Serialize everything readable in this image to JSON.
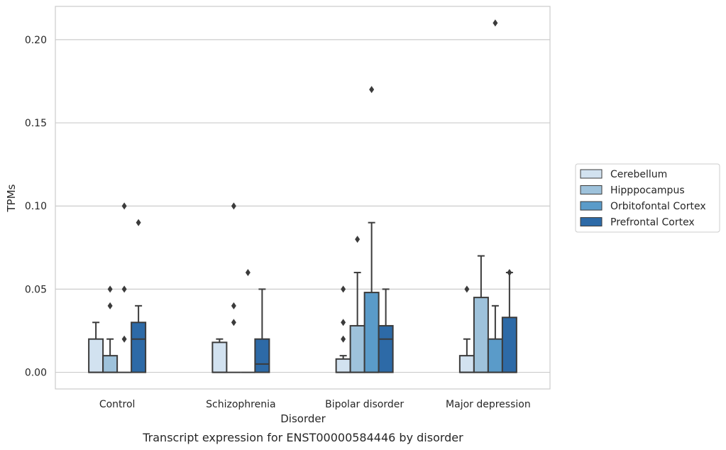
{
  "caption": "Transcript expression for ENST00000584446 by disorder",
  "chart_data": {
    "type": "box",
    "xlabel": "Disorder",
    "ylabel": "TPMs",
    "ylim": [
      -0.01,
      0.22
    ],
    "yticks": [
      0.0,
      0.05,
      0.1,
      0.15,
      0.2
    ],
    "ytick_labels": [
      "0.00",
      "0.05",
      "0.10",
      "0.15",
      "0.20"
    ],
    "categories": [
      "Control",
      "Schizophrenia",
      "Bipolar disorder",
      "Major depression"
    ],
    "grid": "horizontal",
    "legend_position": "right",
    "series": [
      {
        "name": "Cerebellum",
        "color": "#d2e2f0",
        "boxes": [
          {
            "q1": 0.0,
            "median": 0.0,
            "q3": 0.02,
            "whisker_low": 0.0,
            "whisker_high": 0.03,
            "outliers": []
          },
          {
            "q1": 0.0,
            "median": 0.0,
            "q3": 0.018,
            "whisker_low": 0.0,
            "whisker_high": 0.02,
            "outliers": []
          },
          {
            "q1": 0.0,
            "median": 0.0,
            "q3": 0.008,
            "whisker_low": 0.0,
            "whisker_high": 0.01,
            "outliers": [
              0.02,
              0.03,
              0.05
            ]
          },
          {
            "q1": 0.0,
            "median": 0.0,
            "q3": 0.01,
            "whisker_low": 0.0,
            "whisker_high": 0.02,
            "outliers": [
              0.05
            ]
          }
        ]
      },
      {
        "name": "Hipppocampus",
        "color": "#9ec2db",
        "boxes": [
          {
            "q1": 0.0,
            "median": 0.0,
            "q3": 0.01,
            "whisker_low": 0.0,
            "whisker_high": 0.02,
            "outliers": [
              0.04,
              0.05
            ]
          },
          {
            "q1": 0.0,
            "median": 0.0,
            "q3": 0.0,
            "whisker_low": 0.0,
            "whisker_high": 0.0,
            "outliers": [
              0.03,
              0.04,
              0.1
            ]
          },
          {
            "q1": 0.0,
            "median": 0.0,
            "q3": 0.028,
            "whisker_low": 0.0,
            "whisker_high": 0.06,
            "outliers": [
              0.08
            ]
          },
          {
            "q1": 0.0,
            "median": 0.0,
            "q3": 0.045,
            "whisker_low": 0.0,
            "whisker_high": 0.07,
            "outliers": []
          }
        ]
      },
      {
        "name": "Orbitofontal Cortex",
        "color": "#5a9bc9",
        "boxes": [
          {
            "q1": 0.0,
            "median": 0.0,
            "q3": 0.0,
            "whisker_low": 0.0,
            "whisker_high": 0.0,
            "outliers": [
              0.02,
              0.05,
              0.1
            ]
          },
          {
            "q1": 0.0,
            "median": 0.0,
            "q3": 0.0,
            "whisker_low": 0.0,
            "whisker_high": 0.0,
            "outliers": [
              0.06
            ]
          },
          {
            "q1": 0.0,
            "median": 0.0,
            "q3": 0.048,
            "whisker_low": 0.0,
            "whisker_high": 0.09,
            "outliers": [
              0.17
            ]
          },
          {
            "q1": 0.0,
            "median": 0.0,
            "q3": 0.02,
            "whisker_low": 0.0,
            "whisker_high": 0.04,
            "outliers": [
              0.21
            ]
          }
        ]
      },
      {
        "name": "Prefrontal Cortex",
        "color": "#2d6aa7",
        "boxes": [
          {
            "q1": 0.0,
            "median": 0.02,
            "q3": 0.03,
            "whisker_low": 0.0,
            "whisker_high": 0.04,
            "outliers": [
              0.09
            ]
          },
          {
            "q1": 0.0,
            "median": 0.005,
            "q3": 0.02,
            "whisker_low": 0.0,
            "whisker_high": 0.05,
            "outliers": []
          },
          {
            "q1": 0.0,
            "median": 0.02,
            "q3": 0.028,
            "whisker_low": 0.0,
            "whisker_high": 0.05,
            "outliers": []
          },
          {
            "q1": 0.0,
            "median": 0.0,
            "q3": 0.033,
            "whisker_low": 0.0,
            "whisker_high": 0.06,
            "outliers": [
              0.06
            ]
          }
        ]
      }
    ]
  }
}
